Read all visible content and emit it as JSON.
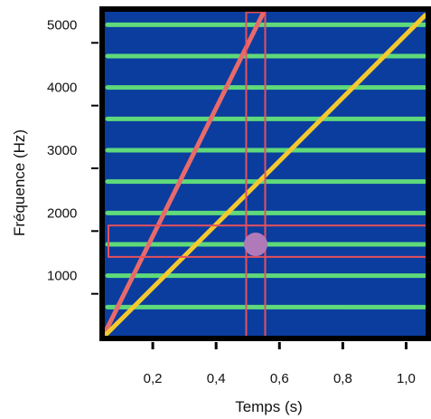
{
  "chart_data": {
    "type": "line",
    "xlabel": "Temps (s)",
    "ylabel": "Fréquence (Hz)",
    "xlim": [
      0.04,
      1.07
    ],
    "ylim": [
      0,
      5250
    ],
    "x_ticks": [
      0.2,
      0.4,
      0.6,
      0.8,
      1.0
    ],
    "x_tick_labels": [
      "0,2",
      "0,4",
      "0,6",
      "0,8",
      "1,0"
    ],
    "y_ticks": [
      1000,
      2000,
      3000,
      4000,
      5000
    ],
    "y_tick_labels": [
      "1000",
      "2000",
      "3000",
      "4000",
      "5000"
    ],
    "background_color": "#0a3d9e",
    "frame_color": "#000000",
    "harmonics": {
      "color": "#5fd97a",
      "frequencies": [
        500,
        1000,
        1500,
        2000,
        2500,
        3000,
        3500,
        4000,
        4500,
        5000
      ]
    },
    "series": [
      {
        "color": "#e86a6a",
        "x": [
          0.04,
          0.55
        ],
        "y": [
          0,
          5200
        ]
      },
      {
        "color": "#f5c92e",
        "x": [
          0.04,
          1.06
        ],
        "y": [
          0,
          5150
        ]
      }
    ],
    "highlight_boxes": [
      {
        "orientation": "vertical",
        "x_range": [
          0.495,
          0.555
        ],
        "y_range": [
          0,
          5200
        ],
        "color": "#e8505b"
      },
      {
        "orientation": "horizontal",
        "x_range": [
          0.06,
          1.07
        ],
        "y_range": [
          1300,
          1800
        ],
        "color": "#e8505b"
      }
    ],
    "marker": {
      "x": 0.525,
      "y": 1500,
      "color": "#b07ab8"
    },
    "grid": false,
    "legend": "none"
  }
}
